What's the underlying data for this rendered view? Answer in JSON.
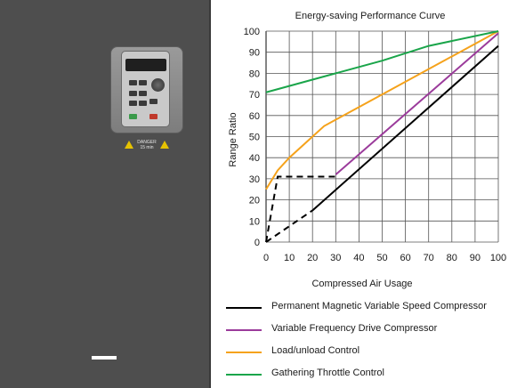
{
  "chart_data": {
    "type": "line",
    "title": "Energy-saving Performance Curve",
    "xlabel": "Compressed Air Usage",
    "ylabel": "Range Ratio",
    "xlim": [
      0,
      100
    ],
    "ylim": [
      0,
      100
    ],
    "x_ticks": [
      "0",
      "10",
      "20",
      "30",
      "40",
      "50",
      "60",
      "70",
      "80",
      "90",
      "100"
    ],
    "y_ticks": [
      "0",
      "10",
      "20",
      "30",
      "40",
      "50",
      "60",
      "70",
      "80",
      "90",
      "100"
    ],
    "grid": true,
    "legend_position": "bottom",
    "series": [
      {
        "name": "Permanent Magnetic Variable Speed Compressor",
        "color": "#000000",
        "x": [
          20,
          100
        ],
        "y": [
          15,
          93
        ]
      },
      {
        "name": "Variable Frequency Drive Compressor",
        "color": "#9b3b9b",
        "x": [
          30,
          100
        ],
        "y": [
          32,
          99
        ]
      },
      {
        "name": "Load/unload Control",
        "color": "#f5a21b",
        "x": [
          0,
          5,
          10,
          20,
          25,
          30,
          50,
          70,
          100
        ],
        "y": [
          25,
          34,
          40,
          50,
          55,
          58,
          70,
          82,
          100
        ]
      },
      {
        "name": "Gathering Throttle Control",
        "color": "#1aa54a",
        "x": [
          0,
          30,
          50,
          70,
          100
        ],
        "y": [
          71,
          80,
          86,
          93,
          100
        ]
      }
    ],
    "dashed_segments": [
      {
        "color": "#000000",
        "x": [
          0,
          20
        ],
        "y": [
          0,
          15
        ]
      },
      {
        "color": "#000000",
        "x": [
          0,
          5,
          30
        ],
        "y": [
          0,
          31,
          31
        ]
      }
    ]
  },
  "device": {
    "danger_label": "DANGER",
    "danger_time": "15 min"
  }
}
